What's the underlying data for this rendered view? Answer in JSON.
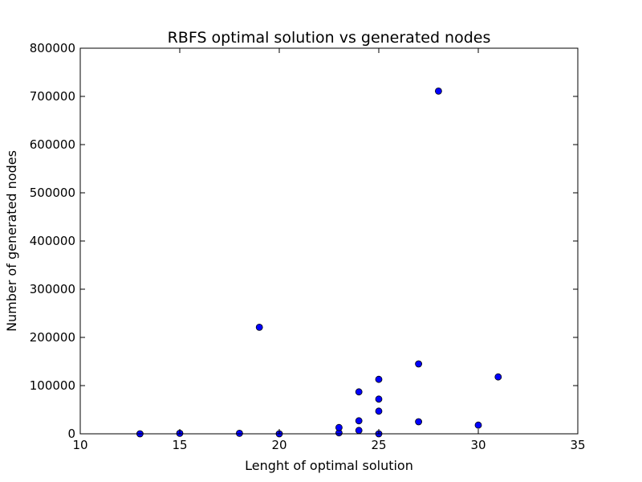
{
  "chart_data": {
    "type": "scatter",
    "title": "RBFS optimal solution vs generated nodes",
    "xlabel": "Lenght of optimal solution",
    "ylabel": "Number of generated nodes",
    "xlim": [
      10,
      35
    ],
    "ylim": [
      0,
      800000
    ],
    "xticks": [
      10,
      15,
      20,
      25,
      30,
      35
    ],
    "xtick_labels": [
      "10",
      "15",
      "20",
      "25",
      "30",
      "35"
    ],
    "yticks": [
      0,
      100000,
      200000,
      300000,
      400000,
      500000,
      600000,
      700000,
      800000
    ],
    "ytick_labels": [
      "0",
      "100000",
      "200000",
      "300000",
      "400000",
      "500000",
      "600000",
      "700000",
      "800000"
    ],
    "grid": false,
    "legend": "none",
    "marker_color": "#0000ff",
    "series": [
      {
        "points": [
          {
            "x": 13,
            "y": 0
          },
          {
            "x": 15,
            "y": 1000
          },
          {
            "x": 18,
            "y": 1000
          },
          {
            "x": 19,
            "y": 221000
          },
          {
            "x": 20,
            "y": 0
          },
          {
            "x": 23,
            "y": 2000
          },
          {
            "x": 23,
            "y": 13000
          },
          {
            "x": 24,
            "y": 7000
          },
          {
            "x": 24,
            "y": 27000
          },
          {
            "x": 24,
            "y": 87000
          },
          {
            "x": 25,
            "y": 0
          },
          {
            "x": 25,
            "y": 47000
          },
          {
            "x": 25,
            "y": 72000
          },
          {
            "x": 25,
            "y": 113000
          },
          {
            "x": 27,
            "y": 25000
          },
          {
            "x": 27,
            "y": 145000
          },
          {
            "x": 28,
            "y": 711000
          },
          {
            "x": 30,
            "y": 18000
          },
          {
            "x": 31,
            "y": 118000
          }
        ]
      }
    ]
  }
}
